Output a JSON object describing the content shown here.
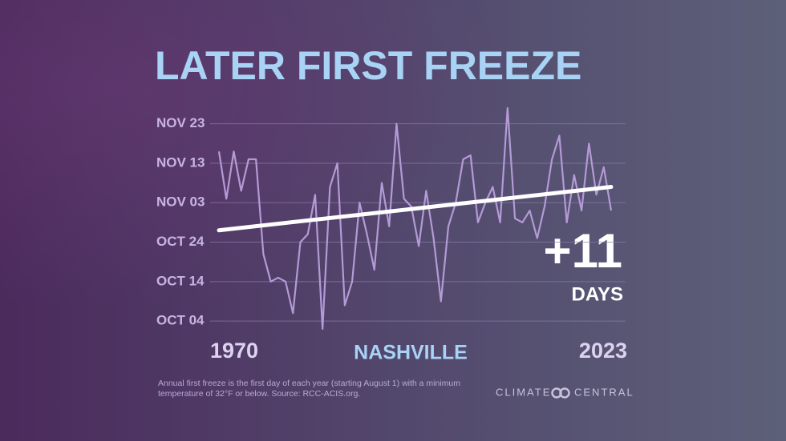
{
  "chart_data": {
    "type": "line",
    "title": "LATER FIRST FREEZE",
    "location": "NASHVILLE",
    "annotation": "+11",
    "annotation_unit": "DAYS",
    "footnote": "Annual first freeze is the first day of each year (starting August 1) with a minimum temperature of 32°F or below. Source: RCC-ACIS.org.",
    "logo": {
      "left": "CLIMATE",
      "right": "CENTRAL"
    },
    "x": [
      1970,
      1971,
      1972,
      1973,
      1974,
      1975,
      1976,
      1977,
      1978,
      1979,
      1980,
      1981,
      1982,
      1983,
      1984,
      1985,
      1986,
      1987,
      1988,
      1989,
      1990,
      1991,
      1992,
      1993,
      1994,
      1995,
      1996,
      1997,
      1998,
      1999,
      2000,
      2001,
      2002,
      2003,
      2004,
      2005,
      2006,
      2007,
      2008,
      2009,
      2010,
      2011,
      2012,
      2013,
      2014,
      2015,
      2016,
      2017,
      2018,
      2019,
      2020,
      2021,
      2022,
      2023
    ],
    "series": [
      {
        "color": "#b49ad6",
        "values": [
          320,
          308,
          320,
          310,
          318,
          318,
          294,
          287,
          288,
          287,
          279,
          297,
          299,
          309,
          275,
          311,
          317,
          281,
          287,
          307,
          299,
          290,
          312,
          301,
          327,
          308,
          306,
          296,
          310,
          298,
          282,
          301,
          307,
          318,
          319,
          302,
          307,
          311,
          302,
          331,
          303,
          302,
          305,
          298,
          306,
          318,
          324,
          302,
          314,
          305,
          322,
          309,
          316,
          305
        ]
      }
    ],
    "trend_line": {
      "color": "#ffffff",
      "values": [
        300,
        311
      ]
    },
    "xlim": [
      1970,
      2023
    ],
    "xticks": [
      1970,
      2023
    ],
    "ylim": [
      275,
      332
    ],
    "yticks": [
      {
        "value": 277,
        "label": "OCT 04"
      },
      {
        "value": 287,
        "label": "OCT 14"
      },
      {
        "value": 297,
        "label": "OCT 24"
      },
      {
        "value": 307,
        "label": "NOV 03"
      },
      {
        "value": 317,
        "label": "NOV 13"
      },
      {
        "value": 327,
        "label": "NOV 23"
      }
    ],
    "grid": true
  }
}
